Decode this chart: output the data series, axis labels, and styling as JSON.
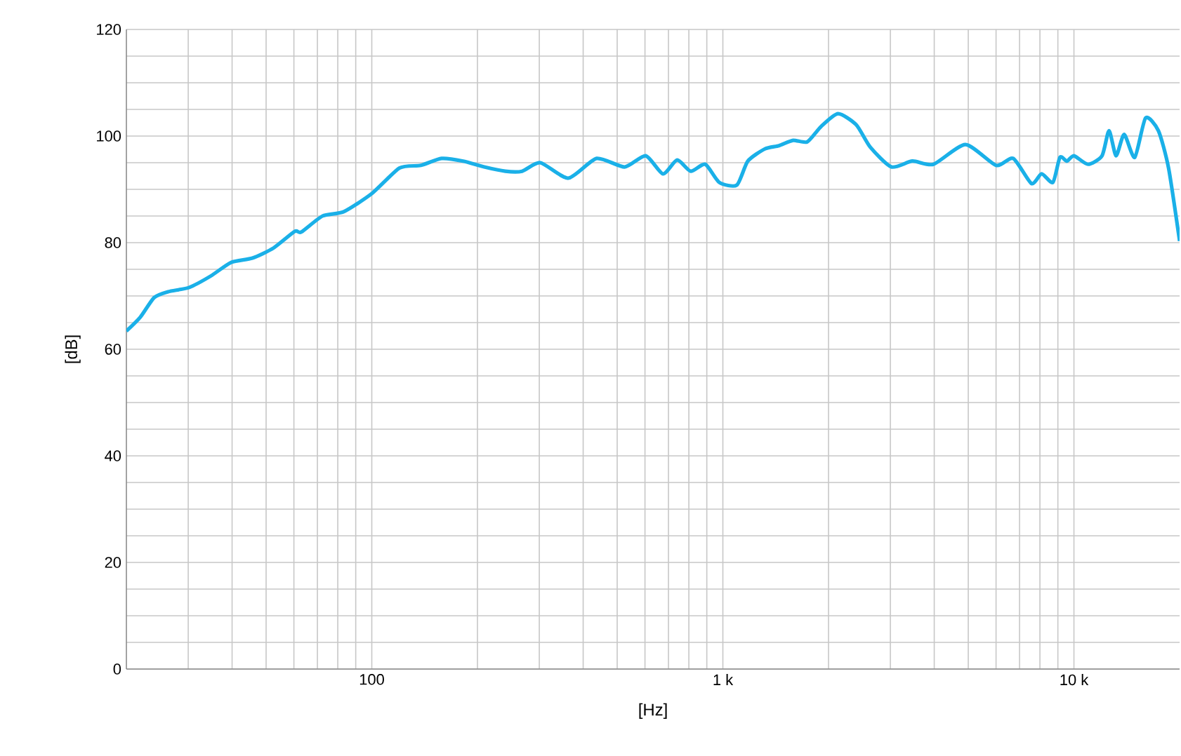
{
  "chart_data": {
    "type": "line",
    "xlabel": "[Hz]",
    "ylabel": "[dB]",
    "log": "x",
    "grid": true,
    "marker": "none",
    "line_style": "solid",
    "xlim": [
      20,
      20000
    ],
    "xticks": [
      {
        "value": 30,
        "label": null
      },
      {
        "value": 40,
        "label": null
      },
      {
        "value": 50,
        "label": null
      },
      {
        "value": 60,
        "label": null
      },
      {
        "value": 70,
        "label": null
      },
      {
        "value": 80,
        "label": null
      },
      {
        "value": 90,
        "label": null
      },
      {
        "value": 100,
        "label": "100"
      },
      {
        "value": 200,
        "label": null
      },
      {
        "value": 300,
        "label": null
      },
      {
        "value": 400,
        "label": null
      },
      {
        "value": 500,
        "label": null
      },
      {
        "value": 600,
        "label": null
      },
      {
        "value": 700,
        "label": null
      },
      {
        "value": 800,
        "label": null
      },
      {
        "value": 900,
        "label": null
      },
      {
        "value": 1000,
        "label": "1 k"
      },
      {
        "value": 2000,
        "label": null
      },
      {
        "value": 3000,
        "label": null
      },
      {
        "value": 4000,
        "label": null
      },
      {
        "value": 5000,
        "label": null
      },
      {
        "value": 6000,
        "label": null
      },
      {
        "value": 7000,
        "label": null
      },
      {
        "value": 8000,
        "label": null
      },
      {
        "value": 9000,
        "label": null
      },
      {
        "value": 10000,
        "label": "10 k"
      }
    ],
    "ylim": [
      0,
      120
    ],
    "yticks": [
      0,
      {
        "value": 5,
        "label": null
      },
      {
        "value": 10,
        "label": null
      },
      {
        "value": 15,
        "label": null
      },
      20,
      {
        "value": 25,
        "label": null
      },
      {
        "value": 30,
        "label": null
      },
      {
        "value": 35,
        "label": null
      },
      40,
      {
        "value": 45,
        "label": null
      },
      {
        "value": 50,
        "label": null
      },
      {
        "value": 55,
        "label": null
      },
      60,
      {
        "value": 65,
        "label": null
      },
      {
        "value": 70,
        "label": null
      },
      {
        "value": 75,
        "label": null
      },
      80,
      {
        "value": 85,
        "label": null
      },
      {
        "value": 90,
        "label": null
      },
      {
        "value": 95,
        "label": null
      },
      100,
      {
        "value": 105,
        "label": null
      },
      {
        "value": 110,
        "label": null
      },
      {
        "value": 115,
        "label": null
      },
      120
    ],
    "series": [
      {
        "color": "#1ab0e8",
        "x": [
          20,
          21.9,
          24,
          26.3,
          30.2,
          34.7,
          39.8,
          45.7,
          52.5,
          60.3,
          63,
          72.4,
          83.2,
          100,
          120,
          138,
          158,
          182,
          209,
          240,
          268,
          302,
          363,
          437,
          525,
          603,
          675,
          741,
          810,
          891,
          977,
          1096,
          1178,
          1318,
          1445,
          1585,
          1738,
          1905,
          2128,
          2399,
          2630,
          3020,
          3467,
          3981,
          4909,
          6000,
          6714,
          7568,
          8090,
          8710,
          9120,
          9550,
          10000,
          10965,
          12023,
          12589,
          13183,
          13900,
          14900,
          16000,
          17400,
          18600,
          20000
        ],
        "values": [
          63.4,
          66,
          69.7,
          70.8,
          71.6,
          73.7,
          76.3,
          77.1,
          79,
          82.1,
          82,
          85,
          85.8,
          89.2,
          94,
          94.5,
          95.8,
          95.3,
          94.2,
          93.4,
          93.4,
          95,
          92.1,
          95.8,
          94.2,
          96.3,
          92.9,
          95.5,
          93.4,
          94.7,
          91.3,
          90.8,
          95.3,
          97.6,
          98.2,
          99.2,
          98.9,
          101.8,
          104.2,
          102.1,
          97.9,
          94.2,
          95.3,
          94.7,
          98.4,
          94.5,
          95.8,
          91.1,
          92.9,
          91.3,
          96,
          95.3,
          96.3,
          94.7,
          96.3,
          101,
          96.3,
          100.3,
          96,
          103.4,
          101,
          94,
          80.3
        ]
      }
    ]
  }
}
